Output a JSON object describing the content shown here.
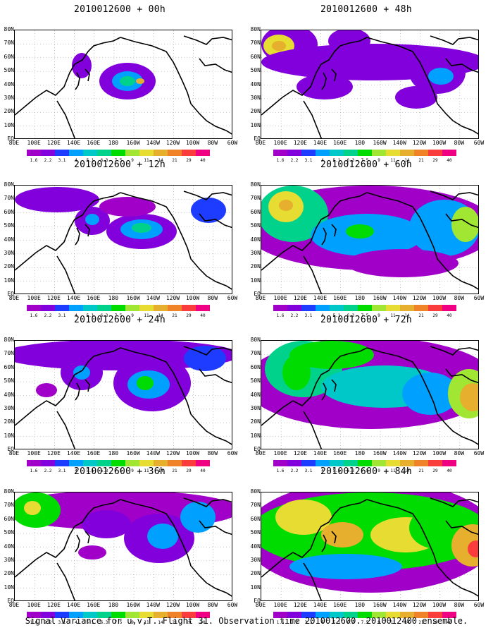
{
  "panels": [
    {
      "title": "2010012600 + 00h",
      "level": 0
    },
    {
      "title": "2010012600 + 48h",
      "level": 4
    },
    {
      "title": "2010012600 + 12h",
      "level": 1
    },
    {
      "title": "2010012600 + 60h",
      "level": 5
    },
    {
      "title": "2010012600 + 24h",
      "level": 2
    },
    {
      "title": "2010012600 + 72h",
      "level": 6
    },
    {
      "title": "2010012600 + 36h",
      "level": 3
    },
    {
      "title": "2010012600 + 84h",
      "level": 7
    }
  ],
  "lat_labels": [
    "80N",
    "70N",
    "60N",
    "50N",
    "40N",
    "30N",
    "20N",
    "10N",
    "EQ"
  ],
  "lon_labels": [
    "80E",
    "100E",
    "120E",
    "140E",
    "160E",
    "180",
    "160W",
    "140W",
    "120W",
    "100W",
    "80W",
    "60W"
  ],
  "colorbar": {
    "labels": [
      "1.6",
      "2.2",
      "3.1",
      "4",
      "5.1",
      "6.3",
      "7.5",
      "9",
      "11",
      "14",
      "21",
      "29",
      "40"
    ],
    "colors": [
      "#a000c8",
      "#8200dc",
      "#1e3cff",
      "#00a0ff",
      "#00c8c8",
      "#00d28c",
      "#00dc00",
      "#a0e632",
      "#e6dc32",
      "#e6af2d",
      "#f08228",
      "#fa3c3c",
      "#f00082"
    ]
  },
  "caption": "Signal Variance for u,v,T. Flight 31. Observation time 2010012600. 2010012400 ensemble."
}
